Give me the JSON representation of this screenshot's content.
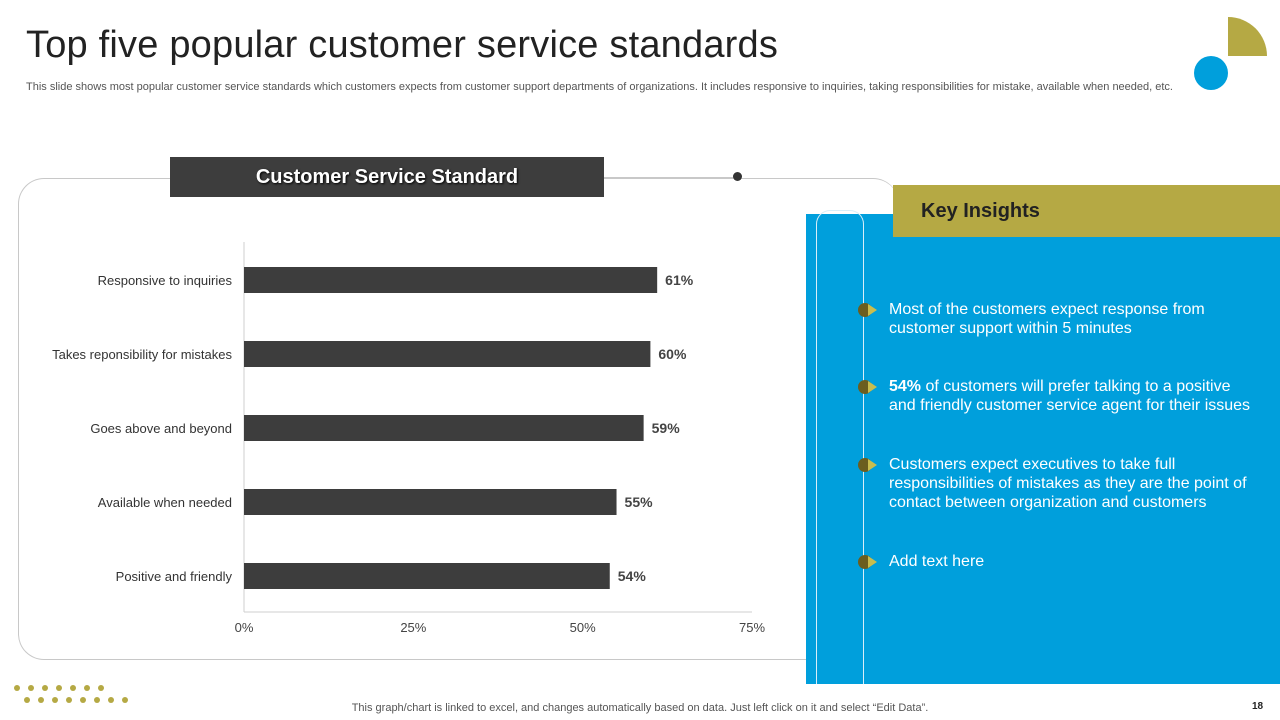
{
  "title": "Top five popular customer service standards",
  "subtitle": "This slide shows most popular customer service standards which customers expects from customer support departments of organizations. It includes responsive to inquiries, taking responsibilities for mistake, available when needed, etc.",
  "chart_header": "Customer Service Standard",
  "chart_data": {
    "type": "bar",
    "orientation": "horizontal",
    "categories": [
      "Responsive to inquiries",
      "Takes reponsibility for mistakes",
      "Goes above and beyond",
      "Available when needed",
      "Positive and friendly"
    ],
    "values": [
      61,
      60,
      59,
      55,
      54
    ],
    "data_labels": [
      "61%",
      "60%",
      "59%",
      "55%",
      "54%"
    ],
    "xlim": [
      0,
      75
    ],
    "xticks": [
      0,
      25,
      50,
      75
    ],
    "xtick_labels": [
      "0%",
      "25%",
      "50%",
      "75%"
    ],
    "bar_color": "#3d3d3d",
    "grid": false
  },
  "insights": {
    "header": "Key Insights",
    "items": [
      {
        "bold": "",
        "text": "Most of the customers expect response from customer support within 5 minutes"
      },
      {
        "bold": "54%",
        "text": " of customers will prefer talking to a positive and friendly customer service agent for their issues"
      },
      {
        "bold": "",
        "text": "Customers expect executives to take full responsibilities of mistakes as they are the point of contact between organization and customers"
      },
      {
        "bold": "",
        "text": "Add text here"
      }
    ]
  },
  "footer": "This graph/chart is linked to excel, and changes automatically based on data. Just left click on it and select “Edit Data”.",
  "page_number": "18",
  "colors": {
    "accent_blue": "#009fdc",
    "accent_olive": "#b5a944",
    "bar_dark": "#3d3d3d"
  }
}
